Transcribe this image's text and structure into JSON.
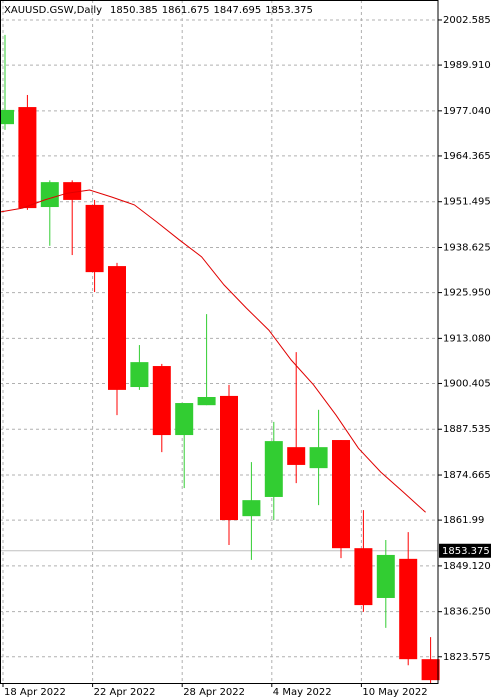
{
  "chart_data": {
    "type": "candlestick",
    "title": "XAUUSD.GSW,Daily",
    "header_values": [
      1850.385,
      1861.675,
      1847.695,
      1853.375
    ],
    "categories": [
      "18 Apr 2022",
      null,
      null,
      null,
      "22 Apr 2022",
      null,
      null,
      null,
      "28 Apr 2022",
      null,
      null,
      null,
      "4 May 2022",
      null,
      null,
      null,
      "10 May 2022",
      null,
      null,
      null
    ],
    "open": [
      1973.3,
      1978.1,
      1950.0,
      1957.0,
      1950.6,
      1933.4,
      1899.4,
      1905.3,
      1885.9,
      1894.3,
      1896.9,
      1863.1,
      1868.5,
      1882.5,
      1876.6,
      1884.5,
      1854.1,
      1840.1,
      1851.1,
      1822.9
    ],
    "high": [
      1998.4,
      1981.5,
      1957.5,
      1957.5,
      1952.0,
      1934.3,
      1911.2,
      1905.9,
      1894.9,
      1919.9,
      1900.0,
      1878.3,
      1889.6,
      1909.2,
      1893.0,
      1884.5,
      1864.8,
      1856.4,
      1858.6,
      1829.1
    ],
    "low": [
      1971.7,
      1949.2,
      1939.1,
      1936.5,
      1926.1,
      1891.5,
      1898.6,
      1881.1,
      1871.0,
      1894.3,
      1855.0,
      1850.8,
      1862.0,
      1872.4,
      1866.2,
      1851.3,
      1836.2,
      1831.7,
      1821.2,
      1816.2
    ],
    "close": [
      1977.3,
      1949.7,
      1957.0,
      1952.0,
      1931.7,
      1898.6,
      1906.4,
      1885.9,
      1894.9,
      1896.6,
      1862.0,
      1867.6,
      1884.2,
      1877.5,
      1882.5,
      1854.1,
      1838.1,
      1852.2,
      1822.9,
      1817.0
    ],
    "up_color": "#32cd32",
    "down_color": "#ff0000",
    "ma": {
      "color": "#e00000",
      "values": [
        1948.6,
        1949.7,
        1952.0,
        1953.9,
        1954.8,
        1952.8,
        1950.6,
        1945.8,
        1940.8,
        1936.0,
        1928.1,
        1921.6,
        1915.4,
        1907.0,
        1900.0,
        1891.5,
        1882.2,
        1875.5,
        1869.9,
        1864.2
      ]
    },
    "current_price": 1853.375,
    "ylim": [
      1816.2,
      2008.2
    ],
    "yticks": [
      2002.585,
      {
        "value": 1989.91,
        "label": "1989.910"
      },
      {
        "value": 1977.04,
        "label": "1977.040"
      },
      1964.365,
      1951.495,
      1938.625,
      {
        "value": 1925.95,
        "label": "1925.950"
      },
      {
        "value": 1913.08,
        "label": "1913.080"
      },
      1900.405,
      1887.535,
      1874.665,
      1861.99,
      {
        "value": 1849.12,
        "label": "1849.120"
      },
      {
        "value": 1836.25,
        "label": "1836.250"
      },
      1823.575
    ],
    "grid": true
  }
}
